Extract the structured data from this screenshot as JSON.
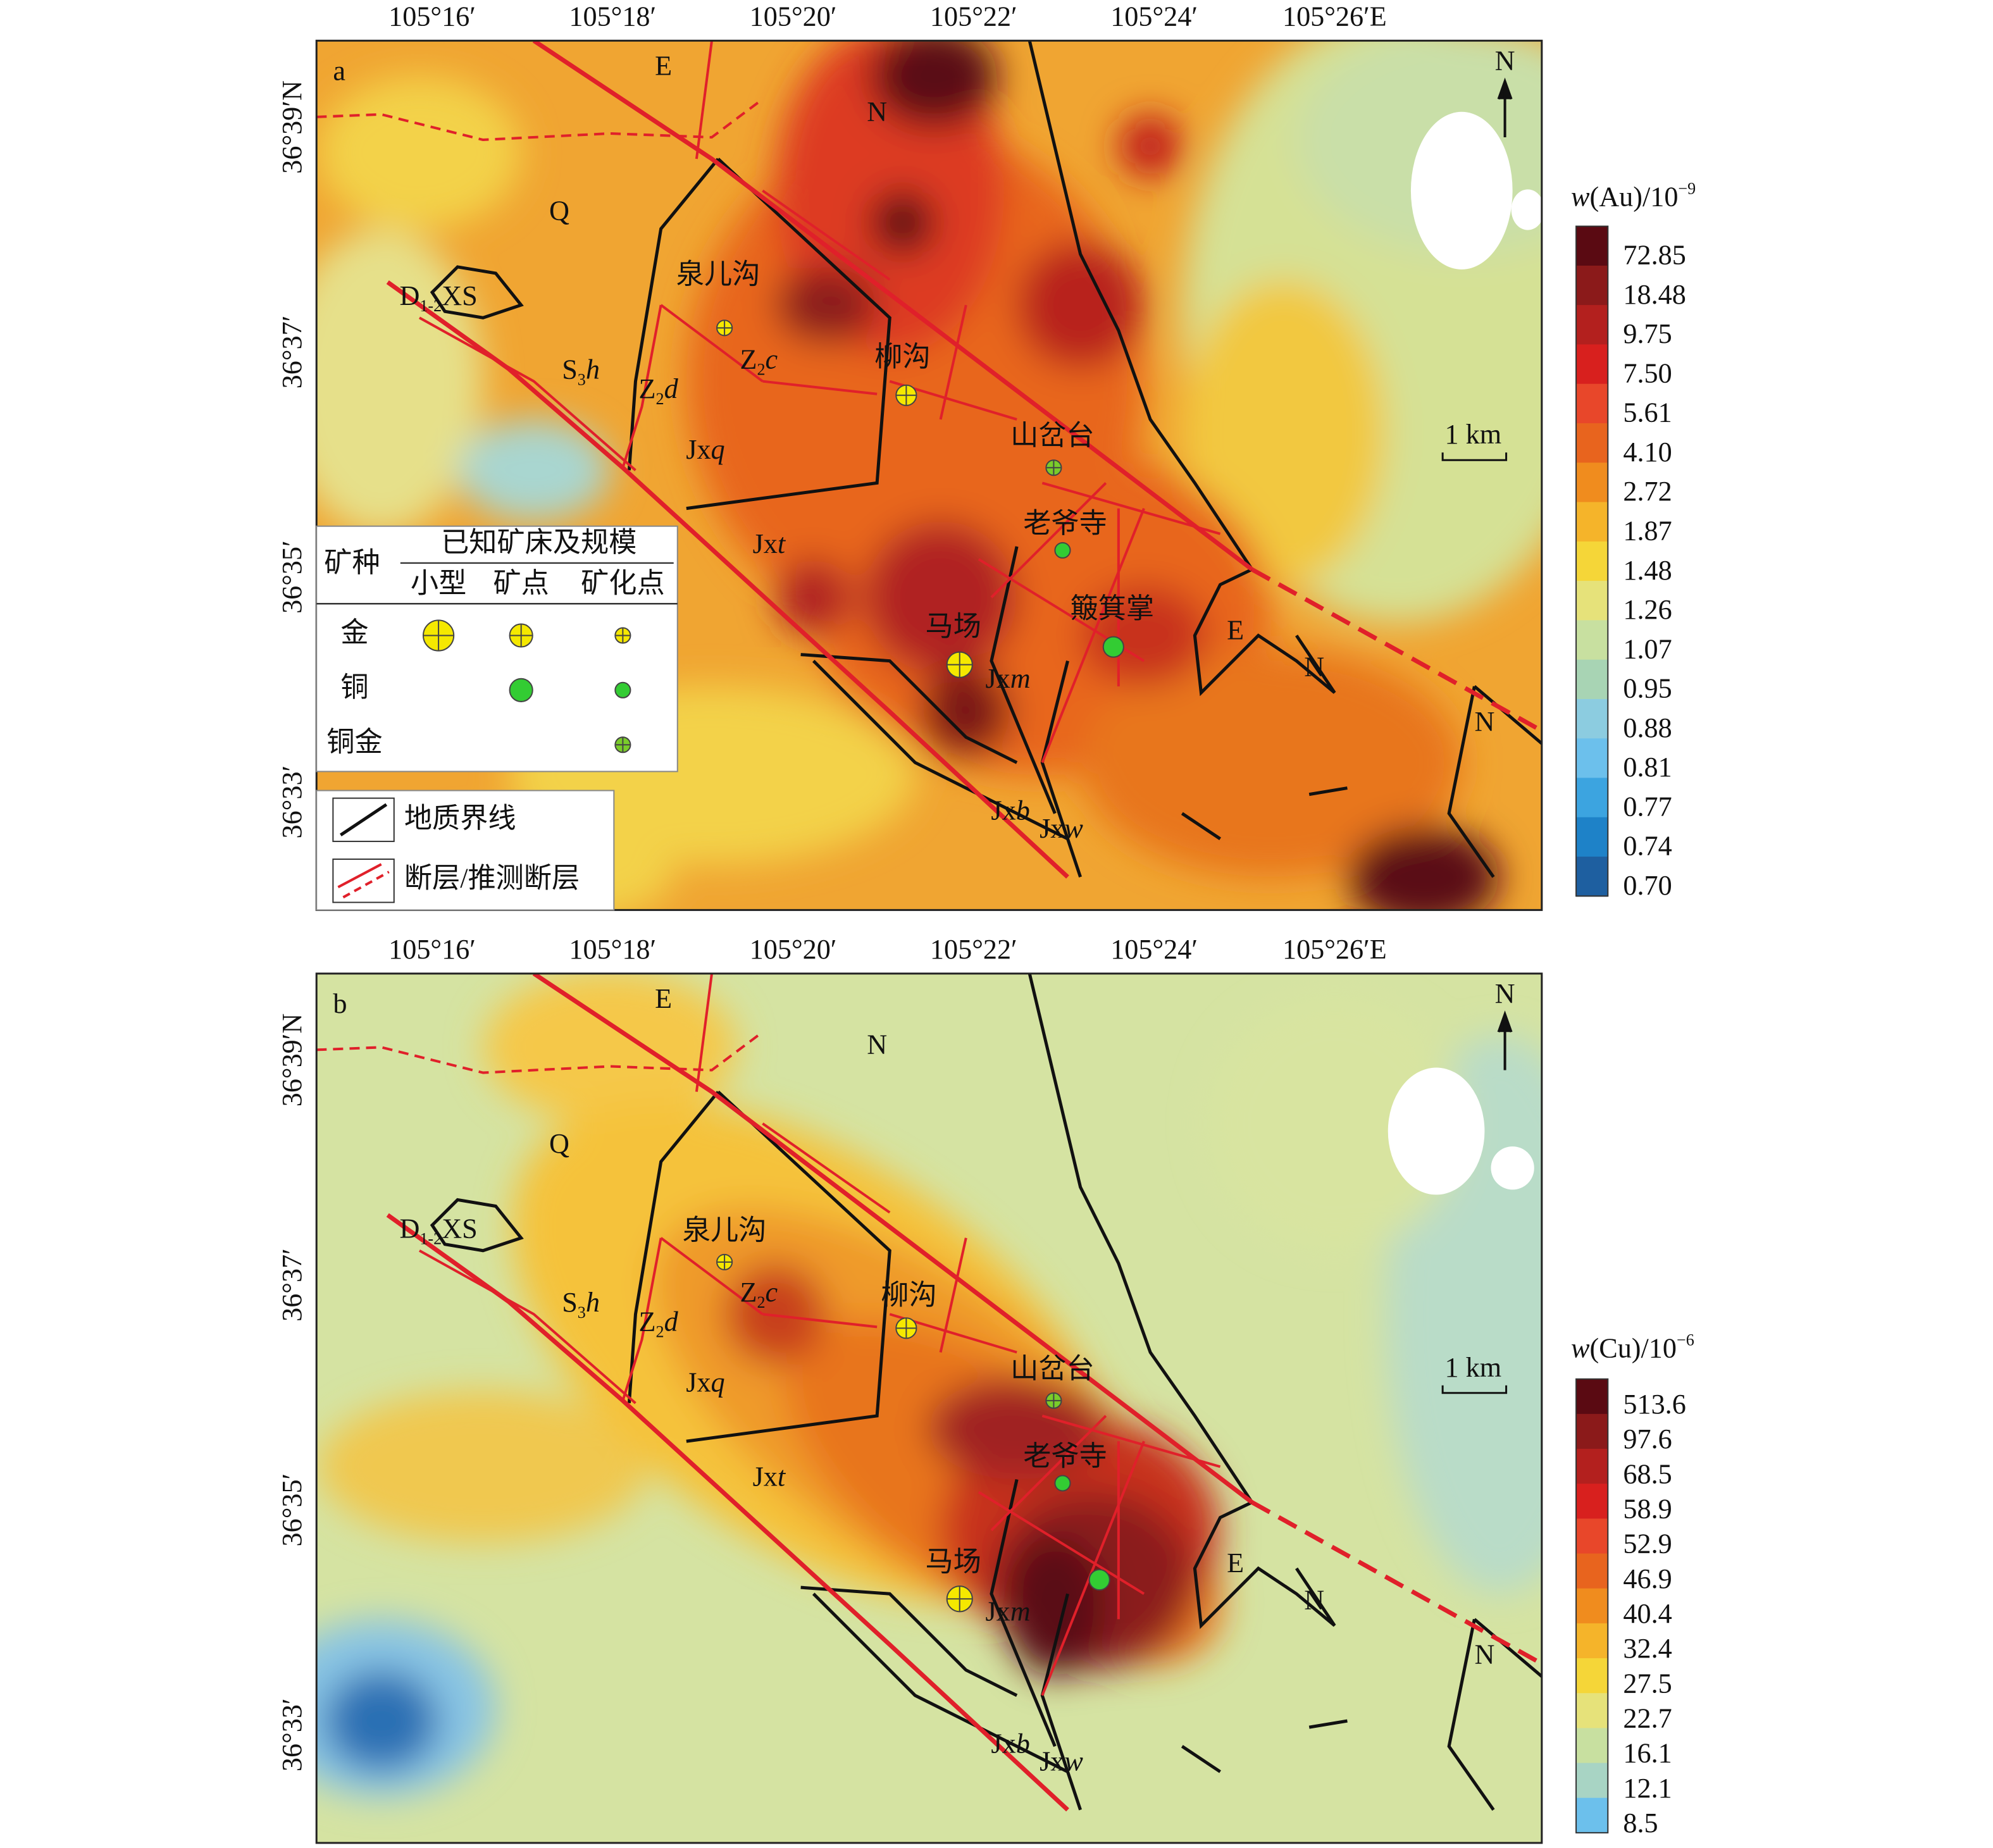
{
  "panels": [
    {
      "letter": "a",
      "x_labels": [
        "105°16′",
        "105°18′",
        "105°20′",
        "105°22′",
        "105°24′",
        "105°26′E"
      ],
      "y_labels": [
        "36°39′N",
        "36°37′",
        "36°35′",
        "36°33′"
      ],
      "north": "N",
      "scale": "1 km",
      "places": [
        "泉儿沟",
        "柳沟",
        "山岔台",
        "老爷寺",
        "簸箕掌",
        "马场"
      ],
      "units": [
        {
          "base": "Q"
        },
        {
          "base": "E"
        },
        {
          "base": "N"
        },
        {
          "base": "D",
          "sub": "1-2",
          "rest": "XS"
        },
        {
          "base": "S",
          "sub": "3",
          "tail": "h"
        },
        {
          "base": "Z",
          "sub": "2",
          "tail": "d"
        },
        {
          "base": "Z",
          "sub": "2",
          "tail": "c"
        },
        {
          "base": "Jx",
          "tail": "q"
        },
        {
          "base": "Jx",
          "tail": "t"
        },
        {
          "base": "Jx",
          "tail": "m"
        },
        {
          "base": "Jx",
          "tail": "b"
        },
        {
          "base": "Jx",
          "tail": "w"
        },
        {
          "base": "E"
        },
        {
          "base": "N"
        },
        {
          "base": "N"
        }
      ],
      "colorbar": {
        "title": {
          "var": "w",
          "text": "(Au)/10",
          "sup": "−9"
        },
        "labels": [
          "72.85",
          "18.48",
          "9.75",
          "7.50",
          "5.61",
          "4.10",
          "2.72",
          "1.87",
          "1.48",
          "1.26",
          "1.07",
          "0.95",
          "0.88",
          "0.81",
          "0.77",
          "0.74",
          "0.70"
        ],
        "colors": [
          "#5a0a12",
          "#8b1a1a",
          "#b3201e",
          "#d8201e",
          "#e8472a",
          "#e8641e",
          "#f08c1e",
          "#f5b42a",
          "#f5d638",
          "#e6e27a",
          "#c8e0a0",
          "#a8d4b4",
          "#8ccce0",
          "#6cc0ec",
          "#3ca4e0",
          "#1e82c8",
          "#1e5fa0"
        ]
      }
    },
    {
      "letter": "b",
      "x_labels": [
        "105°16′",
        "105°18′",
        "105°20′",
        "105°22′",
        "105°24′",
        "105°26′E"
      ],
      "y_labels": [
        "36°39′N",
        "36°37′",
        "36°35′",
        "36°33′"
      ],
      "north": "N",
      "scale": "1 km",
      "places": [
        "泉儿沟",
        "柳沟",
        "山岔台",
        "老爷寺",
        "马场"
      ],
      "units": [
        {
          "base": "Q"
        },
        {
          "base": "E"
        },
        {
          "base": "N"
        },
        {
          "base": "D",
          "sub": "1-2",
          "rest": "XS"
        },
        {
          "base": "S",
          "sub": "3",
          "tail": "h"
        },
        {
          "base": "Z",
          "sub": "2",
          "tail": "d"
        },
        {
          "base": "Z",
          "sub": "2",
          "tail": "c"
        },
        {
          "base": "Jx",
          "tail": "q"
        },
        {
          "base": "Jx",
          "tail": "t"
        },
        {
          "base": "Jx",
          "tail": "m"
        },
        {
          "base": "Jx",
          "tail": "b"
        },
        {
          "base": "Jx",
          "tail": "w"
        },
        {
          "base": "E"
        },
        {
          "base": "N"
        },
        {
          "base": "N"
        }
      ],
      "colorbar": {
        "title": {
          "var": "w",
          "text": "(Cu)/10",
          "sup": "−6"
        },
        "labels": [
          "513.6",
          "97.6",
          "68.5",
          "58.9",
          "52.9",
          "46.9",
          "40.4",
          "32.4",
          "27.5",
          "22.7",
          "16.1",
          "12.1",
          "8.5"
        ],
        "colors": [
          "#5a0a12",
          "#8b1a1a",
          "#b3201e",
          "#d8201e",
          "#e8472a",
          "#e8641e",
          "#f08c1e",
          "#f5b42a",
          "#f5d638",
          "#e6e27a",
          "#c8e0a0",
          "#a8d4c4",
          "#6cc0ec"
        ]
      }
    }
  ],
  "legend": {
    "mineral_header": "矿种",
    "scale_header": "已知矿床及规模",
    "columns": [
      "小型",
      "矿点",
      "矿化点"
    ],
    "rows": [
      "金",
      "铜",
      "铜金"
    ],
    "lines": [
      "地质界线",
      "断层/推测断层"
    ]
  }
}
